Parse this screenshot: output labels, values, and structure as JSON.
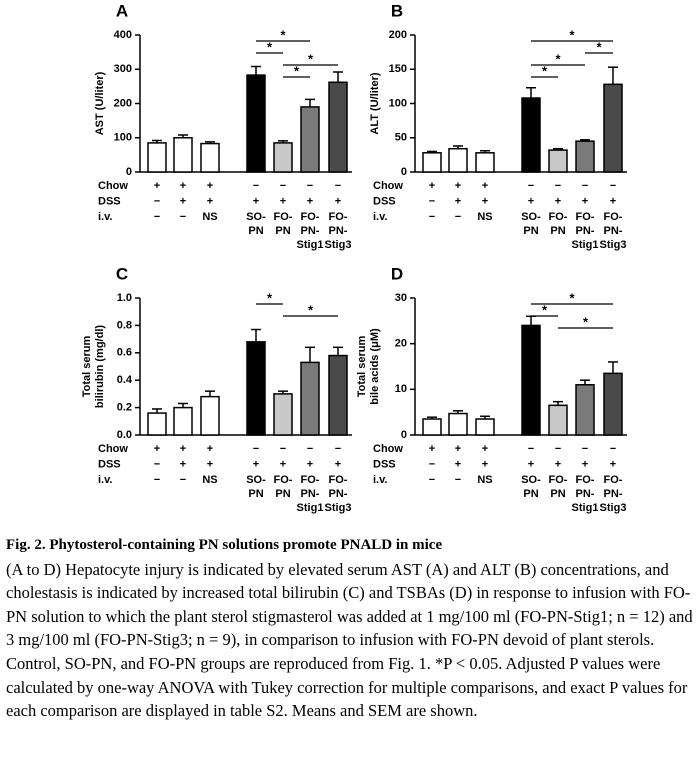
{
  "chart_data": [
    {
      "type": "bar",
      "panel": "A",
      "ylabel": [
        "AST (U/liter)"
      ],
      "ylim": [
        0,
        400
      ],
      "yticks": [
        0,
        100,
        200,
        300,
        400
      ],
      "values": [
        85,
        100,
        83,
        283,
        85,
        190,
        262
      ],
      "errors": [
        7,
        8,
        5,
        25,
        6,
        22,
        30
      ],
      "colors": [
        "#ffffff",
        "#ffffff",
        "#ffffff",
        "#000000",
        "#c8c8c8",
        "#7a7a7a",
        "#4a4a4a"
      ],
      "rows": [
        {
          "label": "Chow",
          "values": [
            "+",
            "+",
            "+",
            "−",
            "−",
            "−",
            "−"
          ]
        },
        {
          "label": "DSS",
          "values": [
            "−",
            "+",
            "+",
            "+",
            "+",
            "+",
            "+"
          ]
        },
        {
          "label": "i.v.",
          "values": [
            [
              "−"
            ],
            [
              "−"
            ],
            [
              "NS"
            ],
            [
              "SO-",
              "PN"
            ],
            [
              "FO-",
              "PN"
            ],
            [
              "FO-",
              "PN-",
              "Stig1"
            ],
            [
              "FO-",
              "PN-",
              "Stig3"
            ]
          ]
        }
      ],
      "comparisons": [
        {
          "pair": [
            3,
            5
          ],
          "label": "*"
        },
        {
          "pair": [
            3,
            4
          ],
          "label": "*"
        },
        {
          "pair": [
            4,
            6
          ],
          "label": "*"
        },
        {
          "pair": [
            4,
            5
          ],
          "label": "*"
        }
      ]
    },
    {
      "type": "bar",
      "panel": "B",
      "ylabel": [
        "ALT (U/liter)"
      ],
      "ylim": [
        0,
        200
      ],
      "yticks": [
        0,
        50,
        100,
        150,
        200
      ],
      "values": [
        28,
        34,
        28,
        108,
        32,
        45,
        128
      ],
      "errors": [
        2,
        4,
        3,
        15,
        2,
        2,
        25
      ],
      "colors": [
        "#ffffff",
        "#ffffff",
        "#ffffff",
        "#000000",
        "#c8c8c8",
        "#7a7a7a",
        "#4a4a4a"
      ],
      "rows": [
        {
          "label": "Chow",
          "values": [
            "+",
            "+",
            "+",
            "−",
            "−",
            "−",
            "−"
          ]
        },
        {
          "label": "DSS",
          "values": [
            "−",
            "+",
            "+",
            "+",
            "+",
            "+",
            "+"
          ]
        },
        {
          "label": "i.v.",
          "values": [
            [
              "−"
            ],
            [
              "−"
            ],
            [
              "NS"
            ],
            [
              "SO-",
              "PN"
            ],
            [
              "FO-",
              "PN"
            ],
            [
              "FO-",
              "PN-",
              "Stig1"
            ],
            [
              "FO-",
              "PN-",
              "Stig3"
            ]
          ]
        }
      ],
      "comparisons": [
        {
          "pair": [
            3,
            6
          ],
          "label": "*"
        },
        {
          "pair": [
            5,
            6
          ],
          "label": "*"
        },
        {
          "pair": [
            3,
            5
          ],
          "label": "*"
        },
        {
          "pair": [
            3,
            4
          ],
          "label": "*"
        }
      ]
    },
    {
      "type": "bar",
      "panel": "C",
      "ylabel": [
        "Total serum",
        "bilirubin (mg/dl)"
      ],
      "ylim": [
        0,
        1
      ],
      "yticks": [
        {
          "value": 0,
          "label": "0.0"
        },
        0.2,
        0.4,
        0.6,
        0.8,
        {
          "value": 1,
          "label": "1.0"
        }
      ],
      "values": [
        0.16,
        0.2,
        0.28,
        0.68,
        0.3,
        0.53,
        0.58
      ],
      "errors": [
        0.03,
        0.03,
        0.04,
        0.09,
        0.02,
        0.11,
        0.06
      ],
      "colors": [
        "#ffffff",
        "#ffffff",
        "#ffffff",
        "#000000",
        "#c8c8c8",
        "#7a7a7a",
        "#4a4a4a"
      ],
      "rows": [
        {
          "label": "Chow",
          "values": [
            "+",
            "+",
            "+",
            "−",
            "−",
            "−",
            "−"
          ]
        },
        {
          "label": "DSS",
          "values": [
            "−",
            "+",
            "+",
            "+",
            "+",
            "+",
            "+"
          ]
        },
        {
          "label": "i.v.",
          "values": [
            [
              "−"
            ],
            [
              "−"
            ],
            [
              "NS"
            ],
            [
              "SO-",
              "PN"
            ],
            [
              "FO-",
              "PN"
            ],
            [
              "FO-",
              "PN-",
              "Stig1"
            ],
            [
              "FO-",
              "PN-",
              "Stig3"
            ]
          ]
        }
      ],
      "comparisons": [
        {
          "pair": [
            3,
            4
          ],
          "label": "*"
        },
        {
          "pair": [
            4,
            6
          ],
          "label": "*"
        }
      ]
    },
    {
      "type": "bar",
      "panel": "D",
      "ylabel": [
        "Total serum",
        "bile acids (μM)"
      ],
      "ylim": [
        0,
        30
      ],
      "yticks": [
        0,
        10,
        20,
        30
      ],
      "values": [
        3.5,
        4.7,
        3.5,
        24,
        6.5,
        11,
        13.5
      ],
      "errors": [
        0.4,
        0.6,
        0.6,
        2,
        0.8,
        1,
        2.5
      ],
      "colors": [
        "#ffffff",
        "#ffffff",
        "#ffffff",
        "#000000",
        "#c8c8c8",
        "#7a7a7a",
        "#4a4a4a"
      ],
      "rows": [
        {
          "label": "Chow",
          "values": [
            "+",
            "+",
            "+",
            "−",
            "−",
            "−",
            "−"
          ]
        },
        {
          "label": "DSS",
          "values": [
            "−",
            "+",
            "+",
            "+",
            "+",
            "+",
            "+"
          ]
        },
        {
          "label": "i.v.",
          "values": [
            [
              "−"
            ],
            [
              "−"
            ],
            [
              "NS"
            ],
            [
              "SO-",
              "PN"
            ],
            [
              "FO-",
              "PN"
            ],
            [
              "FO-",
              "PN-",
              "Stig1"
            ],
            [
              "FO-",
              "PN-",
              "Stig3"
            ]
          ]
        }
      ],
      "comparisons": [
        {
          "pair": [
            3,
            6
          ],
          "label": "*"
        },
        {
          "pair": [
            3,
            4
          ],
          "label": "*"
        },
        {
          "pair": [
            4,
            6
          ],
          "label": "*"
        }
      ]
    }
  ],
  "caption": {
    "title": "Fig. 2. Phytosterol-containing PN solutions promote PNALD in mice",
    "body": "(A to D) Hepatocyte injury is indicated by elevated serum AST (A) and ALT (B) concentrations, and cholestasis is indicated by increased total bilirubin (C) and TSBAs (D) in response to infusion with FO-PN solution to which the plant sterol stigmasterol was added at 1 mg/100 ml (FO-PN-Stig1; n = 12) and 3 mg/100 ml (FO-PN-Stig3; n = 9), in comparison to infusion with FO-PN devoid of plant sterols. Control, SO-PN, and FO-PN groups are reproduced from Fig. 1. *P < 0.05. Adjusted P values were calculated by one-way ANOVA with Tukey correction for multiple comparisons, and exact P values for each comparison are displayed in table S2. Means and SEM are shown."
  }
}
